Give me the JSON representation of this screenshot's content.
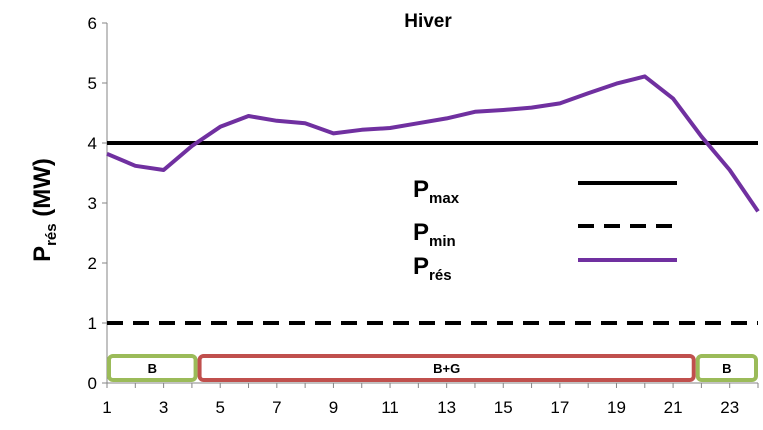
{
  "chart_data": {
    "type": "line",
    "title": "Hiver",
    "ylabel": {
      "main": "P",
      "sub": "rés",
      "unit": " (MW)"
    },
    "x": [
      1,
      2,
      3,
      4,
      5,
      6,
      7,
      8,
      9,
      10,
      11,
      12,
      13,
      14,
      15,
      16,
      17,
      18,
      19,
      20,
      21,
      22,
      23,
      24
    ],
    "xticks": [
      "1",
      "3",
      "5",
      "7",
      "9",
      "11",
      "13",
      "15",
      "17",
      "19",
      "21",
      "23"
    ],
    "yticks": [
      "0",
      "1",
      "2",
      "3",
      "4",
      "5",
      "6"
    ],
    "ylim": [
      0,
      6
    ],
    "xlim": [
      1,
      24
    ],
    "grid": false,
    "legend_position": "center-right",
    "series": [
      {
        "name": "P",
        "sub": "max",
        "style": "solid",
        "color": "#000000",
        "constant": 4
      },
      {
        "name": "P",
        "sub": "min",
        "style": "dashed",
        "color": "#000000",
        "constant": 1
      },
      {
        "name": "P",
        "sub": "rés",
        "style": "solid",
        "color": "#7030a0",
        "values": [
          3.82,
          3.62,
          3.55,
          3.95,
          4.27,
          4.45,
          4.37,
          4.33,
          4.16,
          4.22,
          4.25,
          4.33,
          4.41,
          4.52,
          4.55,
          4.59,
          4.66,
          4.83,
          4.99,
          5.11,
          4.74,
          4.11,
          3.55,
          2.86
        ]
      }
    ],
    "regions": [
      {
        "label": "B",
        "x_start": 1,
        "x_end": 4.2,
        "color": "#9bbb59"
      },
      {
        "label": "B+G",
        "x_start": 4.2,
        "x_end": 21.8,
        "color": "#c0504d"
      },
      {
        "label": "B",
        "x_start": 21.8,
        "x_end": 24,
        "color": "#9bbb59"
      }
    ]
  }
}
